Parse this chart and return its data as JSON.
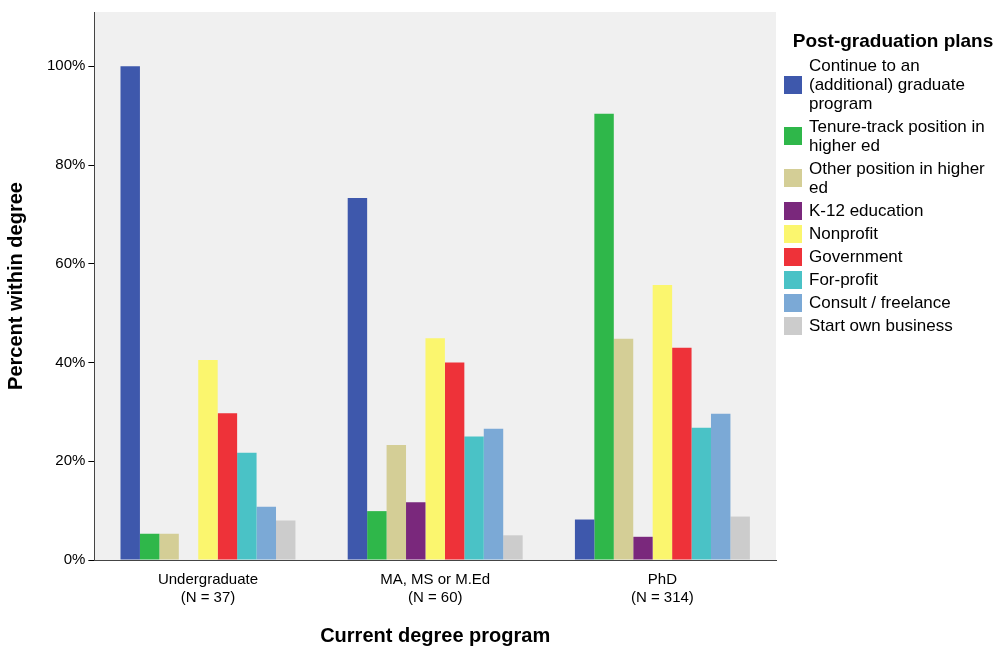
{
  "chart_data": {
    "type": "bar",
    "xlabel": "Current degree program",
    "ylabel": "Percent within degree",
    "legend_title": "Post-graduation plans",
    "categories": [
      "Undergraduate\n(N = 37)",
      "MA, MS or M.Ed\n(N = 60)",
      "PhD\n(N = 314)"
    ],
    "series": [
      {
        "name": "Continue to an (additional) graduate program",
        "color": "#3e58ac",
        "values": [
          100,
          73.3,
          8.2
        ]
      },
      {
        "name": "Tenure-track position in higher ed",
        "color": "#2fb74a",
        "values": [
          5.3,
          9.9,
          90.4
        ]
      },
      {
        "name": "Other position in higher ed",
        "color": "#d4ce96",
        "values": [
          5.3,
          23.3,
          44.8
        ]
      },
      {
        "name": "K-12 education",
        "color": "#7a287c",
        "values": [
          0,
          11.7,
          4.7
        ]
      },
      {
        "name": "Nonprofit",
        "color": "#fbf66e",
        "values": [
          40.5,
          44.9,
          55.7
        ]
      },
      {
        "name": "Government",
        "color": "#ee3239",
        "values": [
          29.7,
          40.0,
          43.0
        ]
      },
      {
        "name": "For-profit",
        "color": "#4ac2c6",
        "values": [
          21.7,
          25.0,
          26.8
        ]
      },
      {
        "name": "Consult / freelance",
        "color": "#7ba9d6",
        "values": [
          10.8,
          26.6,
          29.6
        ]
      },
      {
        "name": "Start own business",
        "color": "#cccccc",
        "values": [
          8.0,
          5.0,
          8.8
        ]
      }
    ],
    "ylim": [
      0,
      111
    ],
    "yticks": [
      {
        "value": 0,
        "label": "0%"
      },
      {
        "value": 20,
        "label": "20%"
      },
      {
        "value": 40,
        "label": "40%"
      },
      {
        "value": 60,
        "label": "60%"
      },
      {
        "value": 80,
        "label": "80%"
      },
      {
        "value": 100,
        "label": "100%"
      }
    ],
    "grid": false,
    "legend": "right"
  }
}
